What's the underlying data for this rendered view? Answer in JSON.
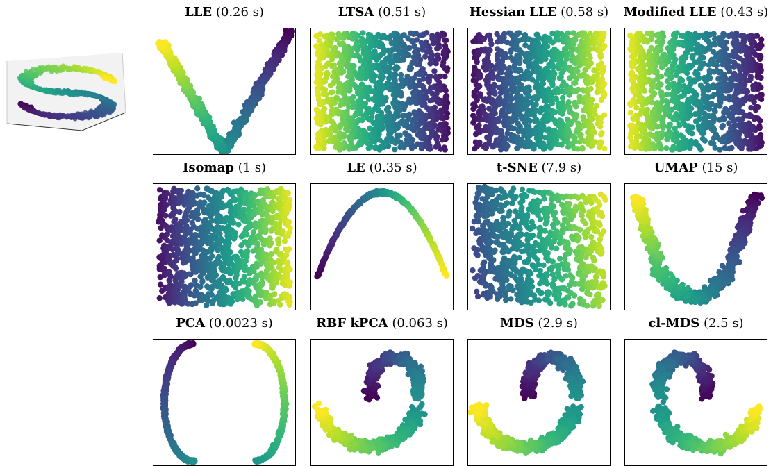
{
  "figure": {
    "colormap": "viridis",
    "colors": [
      "#440154",
      "#482878",
      "#3e4989",
      "#31688e",
      "#26828e",
      "#1f9e89",
      "#35b779",
      "#6ece58",
      "#b5de2b",
      "#fde725"
    ],
    "inset": {
      "type": "3d-scatter",
      "shape": "S-curve"
    }
  },
  "chart_data": [
    {
      "type": "scatter",
      "method": "LLE",
      "time": "(0.26 s)",
      "shape": "v-shape"
    },
    {
      "type": "scatter",
      "method": "LTSA",
      "time": "(0.51 s)",
      "shape": "uniform-rect",
      "gradient": "yellow-left-to-purple-right"
    },
    {
      "type": "scatter",
      "method": "Hessian LLE",
      "time": "(0.58 s)",
      "shape": "uniform-rect",
      "gradient": "purple-left-to-yellow-right"
    },
    {
      "type": "scatter",
      "method": "Modified LLE",
      "time": "(0.43 s)",
      "shape": "uniform-rect",
      "gradient": "yellow-left-to-purple-right"
    },
    {
      "type": "scatter",
      "method": "Isomap",
      "time": "(1 s)",
      "shape": "uniform-rect",
      "gradient": "purple-left-to-yellow-right"
    },
    {
      "type": "scatter",
      "method": "LE",
      "time": "(0.35 s)",
      "shape": "arch"
    },
    {
      "type": "scatter",
      "method": "t-SNE",
      "time": "(7.9 s)",
      "shape": "twisted-band"
    },
    {
      "type": "scatter",
      "method": "UMAP",
      "time": "(15 s)",
      "shape": "u-shape"
    },
    {
      "type": "scatter",
      "method": "PCA",
      "time": "(0.0023 s)",
      "shape": "s-curve-thin"
    },
    {
      "type": "scatter",
      "method": "RBF kPCA",
      "time": "(0.063 s)",
      "shape": "s-curve-bulged"
    },
    {
      "type": "scatter",
      "method": "MDS",
      "time": "(2.9 s)",
      "shape": "s-curve-wide"
    },
    {
      "type": "scatter",
      "method": "cl-MDS",
      "time": "(2.5 s)",
      "shape": "s-curve-wide-rev"
    }
  ]
}
